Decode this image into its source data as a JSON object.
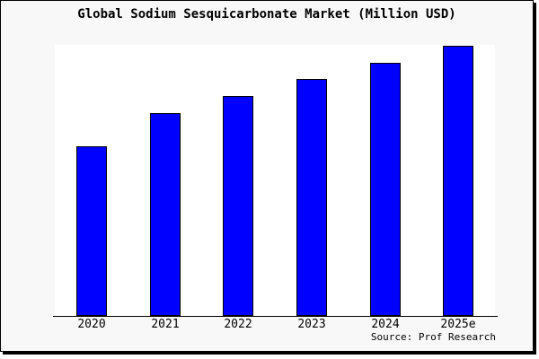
{
  "chart_data": {
    "type": "bar",
    "title": "Global Sodium Sesquicarbonate Market (Million USD)",
    "categories": [
      "2020",
      "2021",
      "2022",
      "2023",
      "2024",
      "2025e"
    ],
    "values_percent_of_max": [
      62.8,
      75.1,
      81.4,
      87.7,
      93.7,
      100
    ],
    "values_note": "Chart shows no y-axis or numeric labels; values are bar heights relative to the tallest bar (2025e = 100).",
    "xlabel": "",
    "ylabel": "",
    "y_axis_shown": false,
    "gridlines": false,
    "legend": false,
    "source_note": "Source: Prof Research",
    "bar_color": "#0000ff",
    "bar_edge_color": "#000000"
  },
  "colors": {
    "figure_background": "#f8f8f8",
    "plot_background": "#ffffff",
    "bar_fill": "#0000ff",
    "bar_edge": "#000000",
    "frame_border": "#000000",
    "text": "#000000",
    "canvas_background": "#ffffff"
  }
}
